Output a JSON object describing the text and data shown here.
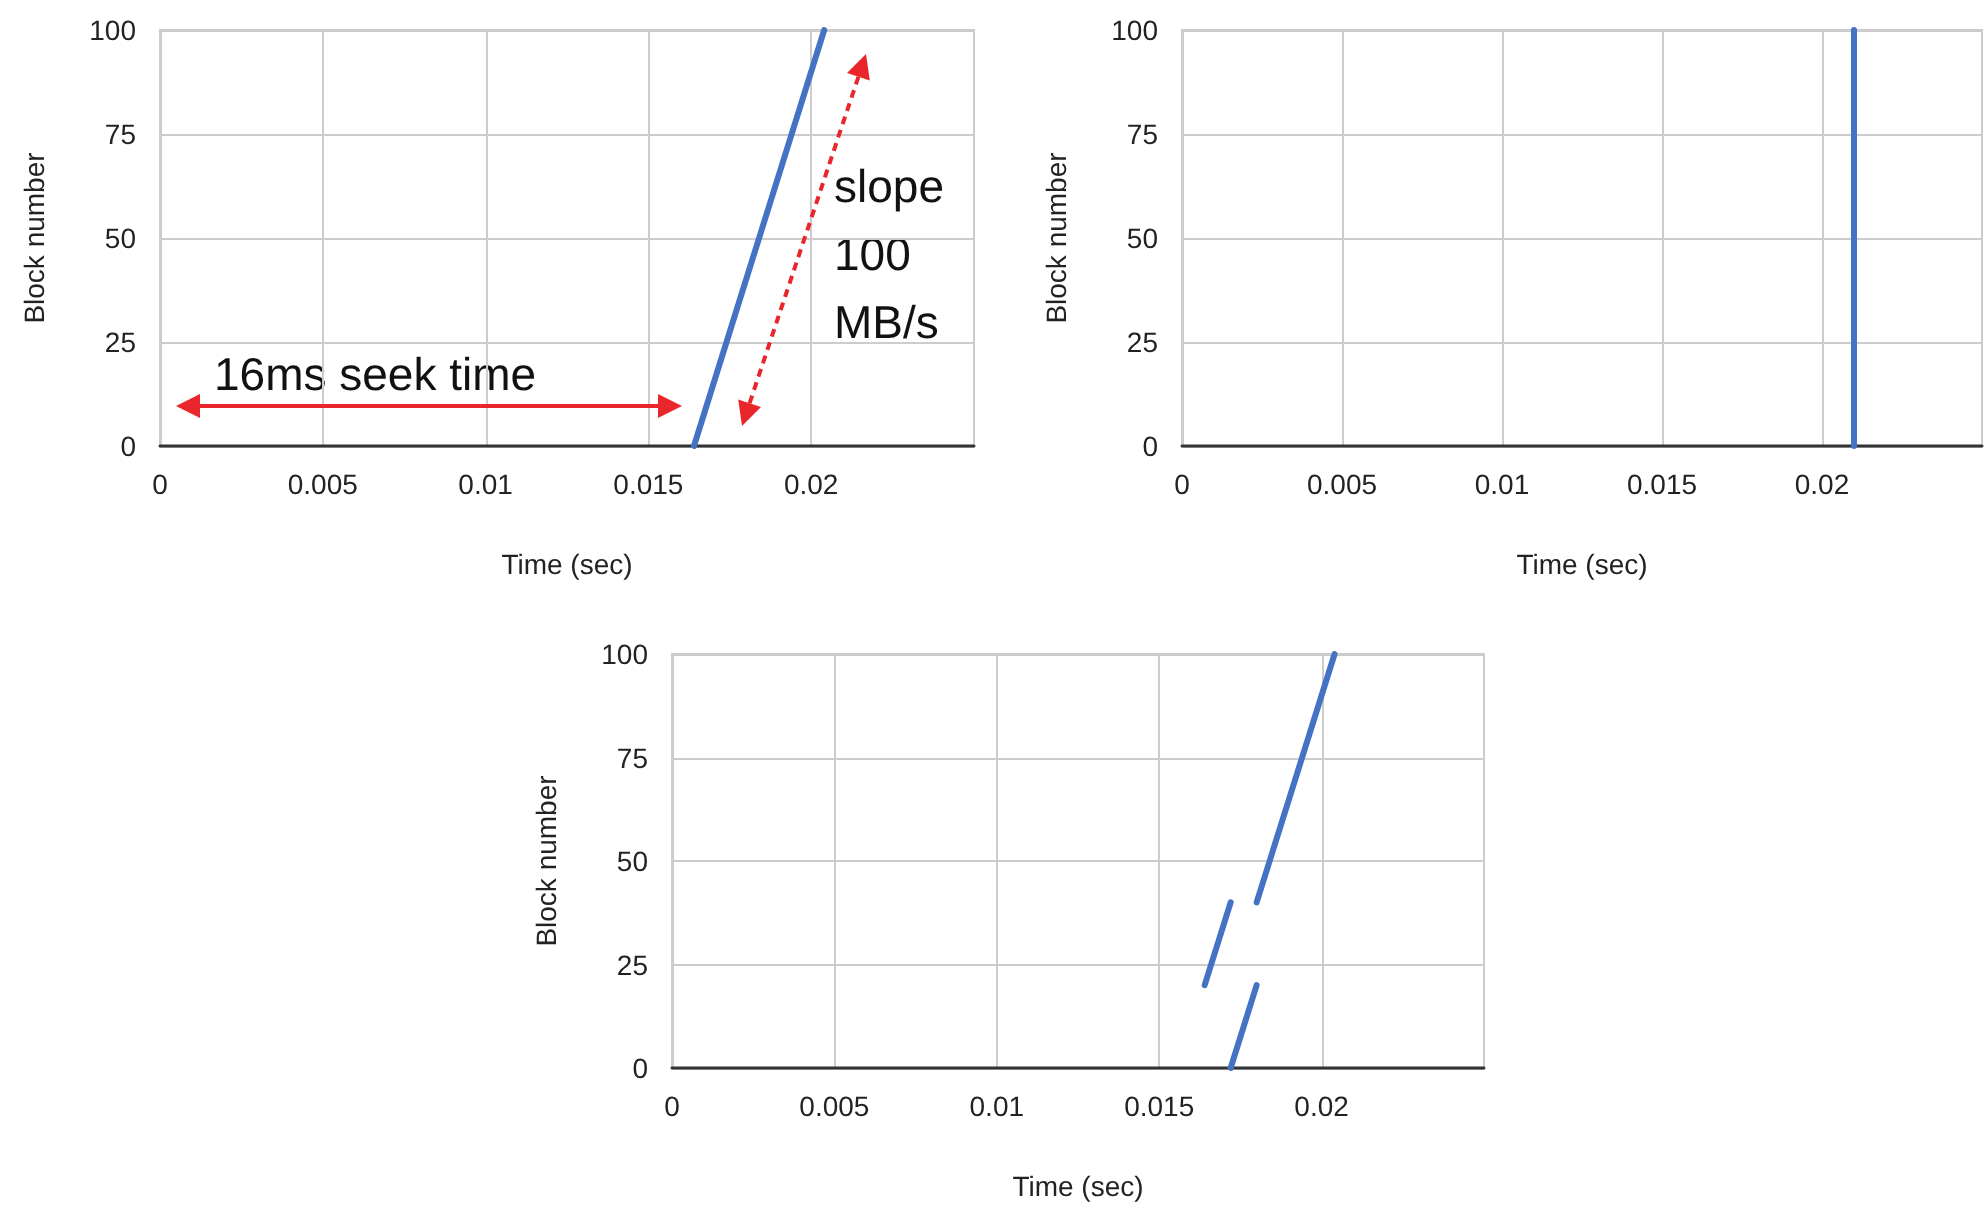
{
  "chart_data": [
    {
      "type": "line",
      "xlabel": "Time (sec)",
      "ylabel": "Block number",
      "xlim": [
        0,
        0.025
      ],
      "xticks": [
        0,
        0.005,
        0.01,
        0.015,
        0.02
      ],
      "ylim": [
        0,
        100
      ],
      "yticks": [
        0,
        25,
        50,
        75,
        100
      ],
      "grid": true,
      "marker": "none",
      "line_style": "solid",
      "series": [
        {
          "color": "#4472c4",
          "x": [
            0.0164,
            0.0204
          ],
          "values": [
            0,
            100
          ]
        }
      ],
      "annotations": [
        "16ms seek time",
        "slope 100 MB/s"
      ]
    },
    {
      "type": "line",
      "xlabel": "Time (sec)",
      "ylabel": "Block number",
      "xlim": [
        0,
        0.025
      ],
      "xticks": [
        0,
        0.005,
        0.01,
        0.015,
        0.02
      ],
      "ylim": [
        0,
        100
      ],
      "yticks": [
        0,
        25,
        50,
        75,
        100
      ],
      "grid": true,
      "marker": "none",
      "line_style": "solid",
      "series": [
        {
          "color": "#4472c4",
          "x": [
            0.021,
            0.021
          ],
          "values": [
            0,
            100
          ]
        }
      ]
    },
    {
      "type": "line",
      "xlabel": "Time (sec)",
      "ylabel": "Block number",
      "xlim": [
        0,
        0.025
      ],
      "xticks": [
        0,
        0.005,
        0.01,
        0.015,
        0.02
      ],
      "ylim": [
        0,
        100
      ],
      "yticks": [
        0,
        25,
        50,
        75,
        100
      ],
      "grid": true,
      "marker": "none",
      "line_style": "solid",
      "series": [
        {
          "color": "#4472c4",
          "x": [
            0.0164,
            0.0172
          ],
          "values": [
            20,
            40
          ]
        },
        {
          "color": "#4472c4",
          "x": [
            0.0172,
            0.018
          ],
          "values": [
            0,
            20
          ]
        },
        {
          "color": "#4472c4",
          "x": [
            0.018,
            0.0204
          ],
          "values": [
            40,
            100
          ]
        }
      ]
    }
  ]
}
